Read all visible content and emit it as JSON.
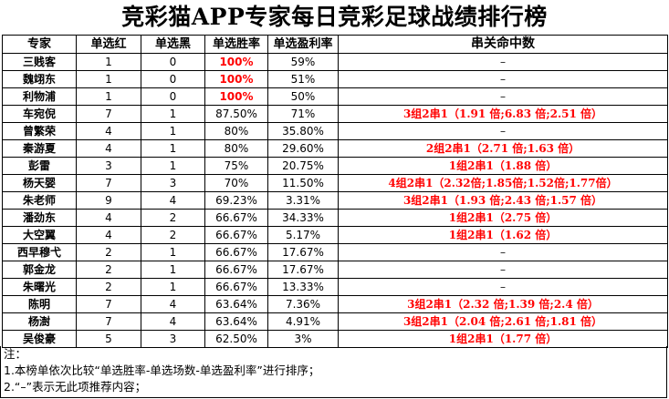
{
  "title": "竞彩猫APP专家每日竞彩足球战绩排行榜",
  "headers": {
    "expert": "专家",
    "red": "单选红",
    "black": "单选黑",
    "win_rate": "单选胜率",
    "profit": "单选盈利率",
    "combo": "串关命中数"
  },
  "rows": [
    {
      "name": "三贱客",
      "red": "1",
      "black": "0",
      "win": "100%",
      "profit": "59%",
      "combo": "–"
    },
    {
      "name": "魏翊东",
      "red": "1",
      "black": "0",
      "win": "100%",
      "profit": "51%",
      "combo": "–"
    },
    {
      "name": "利物浦",
      "red": "1",
      "black": "0",
      "win": "100%",
      "profit": "50%",
      "combo": "–"
    },
    {
      "name": "车宛倪",
      "red": "7",
      "black": "1",
      "win": "87.50%",
      "profit": "71%",
      "combo": "3组2串1（1.91 倍;6.83 倍;2.51 倍）"
    },
    {
      "name": "曾繁荣",
      "red": "4",
      "black": "1",
      "win": "80%",
      "profit": "35.80%",
      "combo": "–"
    },
    {
      "name": "秦游夏",
      "red": "4",
      "black": "1",
      "win": "80%",
      "profit": "29.60%",
      "combo": "2组2串1（2.71 倍;1.63 倍）"
    },
    {
      "name": "彭雷",
      "red": "3",
      "black": "1",
      "win": "75%",
      "profit": "20.75%",
      "combo": "1组2串1（1.88 倍）"
    },
    {
      "name": "杨天婴",
      "red": "7",
      "black": "3",
      "win": "70%",
      "profit": "11.50%",
      "combo": "4组2串1（2.32倍;1.85倍;1.52倍;1.77倍）"
    },
    {
      "name": "朱老师",
      "red": "9",
      "black": "4",
      "win": "69.23%",
      "profit": "3.31%",
      "combo": "3组2串1（1.93 倍;2.43 倍;1.57 倍）"
    },
    {
      "name": "潘劲东",
      "red": "4",
      "black": "2",
      "win": "66.67%",
      "profit": "34.33%",
      "combo": "1组2串1（2.75 倍）"
    },
    {
      "name": "大空翼",
      "red": "4",
      "black": "2",
      "win": "66.67%",
      "profit": "5.17%",
      "combo": "1组2串1（1.62 倍）"
    },
    {
      "name": "西早穆弋",
      "red": "2",
      "black": "1",
      "win": "66.67%",
      "profit": "17.67%",
      "combo": "–"
    },
    {
      "name": "郭金龙",
      "red": "2",
      "black": "1",
      "win": "66.67%",
      "profit": "17.67%",
      "combo": "–"
    },
    {
      "name": "朱曙光",
      "red": "2",
      "black": "1",
      "win": "66.67%",
      "profit": "13.33%",
      "combo": "–"
    },
    {
      "name": "陈明",
      "red": "7",
      "black": "4",
      "win": "63.64%",
      "profit": "7.36%",
      "combo": "3组2串1（2.32 倍;1.39 倍;2.4 倍）"
    },
    {
      "name": "杨澍",
      "red": "7",
      "black": "4",
      "win": "63.64%",
      "profit": "4.91%",
      "combo": "3组2串1（2.04 倍;2.61 倍;1.81 倍）"
    },
    {
      "name": "吴俊豪",
      "red": "5",
      "black": "3",
      "win": "62.50%",
      "profit": "3%",
      "combo": "1组2串1（1.77 倍）"
    }
  ],
  "notes": {
    "label": "注：",
    "items": [
      "1.本榜单依次比较“单选胜率-单选场数-单选盈利率”进行排序；",
      "2.“–”表示无此项推荐内容；"
    ]
  },
  "colors": {
    "highlight": "#ff0000",
    "text": "#000000",
    "border": "#000000"
  }
}
